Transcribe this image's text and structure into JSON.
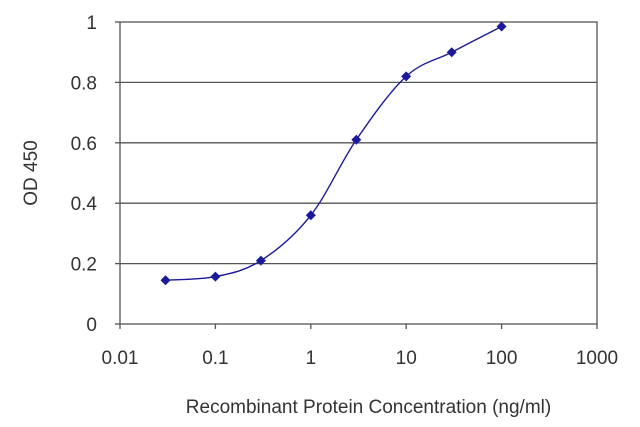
{
  "chart_data": {
    "type": "scatter",
    "xlabel": "Recombinant Protein Concentration (ng/ml)",
    "ylabel": "OD 450",
    "x_scale": "log",
    "xlim": [
      0.01,
      1000
    ],
    "ylim": [
      0,
      1
    ],
    "x_ticks": [
      "0.01",
      "0.1",
      "1",
      "10",
      "100",
      "1000"
    ],
    "y_ticks": [
      "0",
      "0.2",
      "0.4",
      "0.6",
      "0.8",
      "1"
    ],
    "grid": "horizontal",
    "legend": "none",
    "series": [
      {
        "x": [
          0.03,
          0.1,
          0.3,
          1,
          3,
          10,
          30,
          100
        ],
        "y": [
          0.145,
          0.157,
          0.21,
          0.36,
          0.61,
          0.82,
          0.9,
          0.985
        ],
        "fitted_curve": true
      }
    ],
    "colors": {
      "series": "#1a1a9a",
      "grid": "#555555",
      "frame": "#555555",
      "text": "#333333"
    }
  }
}
